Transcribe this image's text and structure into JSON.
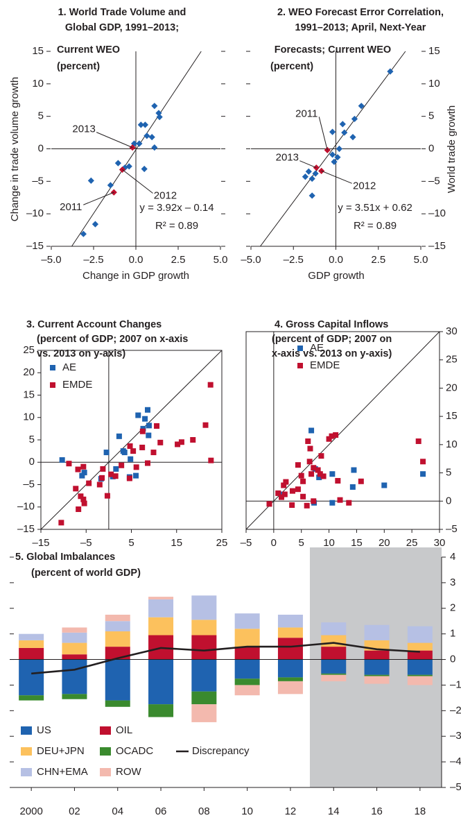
{
  "chart_data": [
    {
      "type": "scatter",
      "title": [
        "1. World Trade Volume and",
        "Global GDP, 1991–2013;",
        "Current WEO",
        "(percent)"
      ],
      "x_label": "Change in GDP growth",
      "y_label": "Change in trade volume growth",
      "xlim": [
        -5,
        5
      ],
      "xticks": [
        {
          "value": -5,
          "label": "–5.0"
        },
        {
          "value": -2.5,
          "label": "–2.5"
        },
        {
          "value": 0,
          "label": "0.0"
        },
        {
          "value": 2.5,
          "label": "2.5"
        },
        {
          "value": 5,
          "label": "5.0"
        }
      ],
      "ylim": [
        -15,
        15
      ],
      "yticks": [
        {
          "value": -15,
          "label": "–15"
        },
        {
          "value": -10,
          "label": "–10"
        },
        {
          "value": -5,
          "label": "–5"
        },
        0,
        5,
        10,
        15
      ],
      "marker": "diamond",
      "series": [
        {
          "color": "#1f63b0",
          "x": [
            1.1,
            1.35,
            1.4,
            0.55,
            0.3,
            0.65,
            0.95,
            1.1,
            0.2,
            -0.1,
            -0.4,
            -0.65,
            -1.05,
            0.5,
            -1.5,
            -2.65,
            -2.4,
            -3.1
          ],
          "values": [
            6.6,
            5.5,
            4.9,
            3.7,
            3.7,
            2.0,
            1.8,
            0.2,
            0.8,
            0.8,
            -2.7,
            -2.9,
            -2.2,
            -3.1,
            -5.6,
            -4.9,
            -11.6,
            -13.1
          ]
        },
        {
          "color": "#c0102f",
          "x": [
            -0.2,
            -0.8,
            -1.3
          ],
          "values": [
            0.2,
            -3.2,
            -6.7
          ],
          "labels": [
            "2013",
            "2012",
            "2011"
          ]
        }
      ],
      "trendline": {
        "slope": 3.92,
        "intercept": -0.14,
        "label": "y = 3.92x – 0.14"
      },
      "r2_label": "R² = 0.89"
    },
    {
      "type": "scatter",
      "title": [
        "2. WEO Forecast Error Correlation,",
        "1991–2013; April, Next-Year",
        "Forecasts; Current WEO",
        "(percent)"
      ],
      "x_label": "GDP growth",
      "y_label": "World trade growth",
      "xlim": [
        -5,
        5
      ],
      "xticks": [
        {
          "value": -5,
          "label": "–5.0"
        },
        {
          "value": -2.5,
          "label": "–2.5"
        },
        {
          "value": 0,
          "label": "0.0"
        },
        {
          "value": 2.5,
          "label": "2.5"
        },
        {
          "value": 5,
          "label": "5.0"
        }
      ],
      "ylim": [
        -15,
        15
      ],
      "yticks": [
        {
          "value": -15,
          "label": "–15"
        },
        {
          "value": -10,
          "label": "–10"
        },
        {
          "value": -5,
          "label": "–5"
        },
        0,
        5,
        10,
        15
      ],
      "marker": "diamond",
      "series": [
        {
          "color": "#1f63b0",
          "x": [
            3.2,
            1.5,
            1.1,
            0.4,
            -0.2,
            0.5,
            1.0,
            0.2,
            -0.2,
            -0.1,
            0.1,
            -1.6,
            -1.8,
            -1.4,
            -1.4,
            -1.2
          ],
          "values": [
            11.9,
            6.6,
            4.6,
            3.8,
            2.6,
            2.5,
            1.8,
            0.0,
            -0.9,
            -2.0,
            -1.3,
            -3.5,
            -4.3,
            -4.6,
            -7.2,
            -3.8
          ]
        },
        {
          "color": "#c0102f",
          "x": [
            -0.5,
            -1.15,
            -0.85
          ],
          "values": [
            -0.2,
            -2.9,
            -3.4
          ],
          "labels": [
            "2011",
            "2013",
            "2012"
          ]
        }
      ],
      "trendline": {
        "slope": 3.51,
        "intercept": 0.62,
        "label": "y = 3.51x + 0.62"
      },
      "r2_label": "R² = 0.89"
    },
    {
      "type": "scatter",
      "title": [
        "3. Current Account Changes",
        "(percent of GDP; 2007 on x-axis",
        "vs. 2013 on y-axis)"
      ],
      "xlim": [
        -15,
        25
      ],
      "xticks": [
        {
          "value": -15,
          "label": "–15"
        },
        {
          "value": -5,
          "label": "–5"
        },
        5,
        15,
        25
      ],
      "ylim": [
        -15,
        25
      ],
      "yticks": [
        {
          "value": -15,
          "label": "–15"
        },
        {
          "value": -10,
          "label": "–10"
        },
        {
          "value": -5,
          "label": "–5"
        },
        0,
        5,
        10,
        15,
        20,
        25
      ],
      "marker": "square",
      "series": [
        {
          "name": "AE",
          "color": "#1f63b0",
          "x": [
            -10.3,
            -5.4,
            -5.9,
            -1.7,
            -0.5,
            0.9,
            2.3,
            3.2,
            4.8,
            4.6,
            6.0,
            6.5,
            7.6,
            8.0,
            8.6,
            8.8,
            8.9,
            1.6,
            3.5
          ],
          "values": [
            0.5,
            -2.3,
            -3.0,
            -3.7,
            2.2,
            -3.2,
            5.8,
            2.5,
            0.7,
            -3.3,
            -3.0,
            10.5,
            7.5,
            9.7,
            11.7,
            6.0,
            8.2,
            -1.5,
            2.2
          ]
        },
        {
          "name": "EMDE",
          "color": "#c0102f",
          "x": [
            -8.8,
            -7.3,
            -6.8,
            -6.7,
            -6.2,
            -5.6,
            -5.6,
            -5.4,
            -4.4,
            -10.5,
            -1.5,
            -1.3,
            -0.3,
            0.5,
            1.5,
            2.8,
            4.6,
            4.7,
            5.4,
            6.1,
            7.4,
            8.6,
            9.9,
            10.6,
            11.4,
            15.2,
            16.1,
            18.6,
            21.4,
            22.5,
            22.6,
            7.5,
            -2.0
          ],
          "values": [
            -0.3,
            -5.9,
            -1.6,
            -10.5,
            -7.6,
            -1.0,
            -8.3,
            -9.2,
            -4.7,
            -13.5,
            -3.5,
            -1.5,
            -7.5,
            -2.7,
            -3.1,
            -0.7,
            -3.6,
            3.6,
            2.5,
            -1.1,
            3.3,
            -0.2,
            2.2,
            8.1,
            4.4,
            4.0,
            4.5,
            5.0,
            8.3,
            17.3,
            0.4,
            6.9,
            -5.0
          ]
        }
      ]
    },
    {
      "type": "scatter",
      "title": [
        "4. Gross Capital Inflows",
        "(percent of GDP; 2007 on",
        "x-axis vs. 2013 on y-axis)"
      ],
      "xlim": [
        -5,
        30
      ],
      "xticks": [
        {
          "value": -5,
          "label": "–5"
        },
        0,
        5,
        10,
        15,
        20,
        25,
        30
      ],
      "ylim": [
        -5,
        30
      ],
      "yticks": [
        {
          "value": -5,
          "label": "–5"
        },
        0,
        5,
        10,
        15,
        20,
        25,
        30
      ],
      "marker": "square",
      "series": [
        {
          "name": "AE",
          "color": "#1f63b0",
          "x": [
            6.8,
            7.5,
            8.2,
            10.6,
            14.5,
            14.3,
            20.0,
            27.0,
            10.6,
            7.3,
            1.7
          ],
          "values": [
            12.5,
            5.7,
            4.2,
            4.8,
            5.5,
            2.5,
            2.8,
            4.8,
            -0.3,
            -0.3,
            1.2
          ]
        },
        {
          "name": "EMDE",
          "color": "#c0102f",
          "x": [
            -0.8,
            0.8,
            1.4,
            2.0,
            1.8,
            2.2,
            3.4,
            4.4,
            4.4,
            5.3,
            5.0,
            5.3,
            6.5,
            6.6,
            6.2,
            7.2,
            8.0,
            8.4,
            8.6,
            9.0,
            10.0,
            10.5,
            11.2,
            11.6,
            13.6,
            12.0,
            15.8,
            7.2,
            6.0,
            3.3,
            26.2,
            27.0,
            6.8
          ],
          "values": [
            -0.5,
            1.4,
            0.7,
            1.2,
            2.8,
            3.4,
            1.8,
            6.4,
            2.1,
            0.8,
            4.5,
            3.5,
            7.0,
            9.3,
            10.6,
            5.9,
            5.5,
            4.8,
            8.0,
            4.4,
            11.0,
            11.5,
            11.7,
            3.6,
            -0.3,
            0.2,
            3.5,
            0.0,
            -0.8,
            -0.7,
            10.6,
            7.0,
            4.8
          ]
        }
      ]
    },
    {
      "type": "bar",
      "stacked": true,
      "title": [
        "5. Global Imbalances",
        "(percent of world GDP)"
      ],
      "categories": [
        "2000",
        "02",
        "04",
        "06",
        "08",
        "10",
        "12",
        "14",
        "16",
        "18"
      ],
      "ylim": [
        -5,
        4
      ],
      "yticks": [
        {
          "value": -5,
          "label": "–5"
        },
        {
          "value": -4,
          "label": "–4"
        },
        {
          "value": -3,
          "label": "–3"
        },
        {
          "value": -2,
          "label": "–2"
        },
        {
          "value": -1,
          "label": "–1"
        },
        0,
        1,
        2,
        3,
        4
      ],
      "series": [
        {
          "name": "US",
          "color": "#1f63b0",
          "values": [
            -1.4,
            -1.35,
            -1.6,
            -1.75,
            -1.25,
            -0.75,
            -0.7,
            -0.55,
            -0.6,
            -0.6
          ]
        },
        {
          "name": "OIL",
          "color": "#c0102f",
          "values": [
            0.45,
            0.2,
            0.5,
            0.95,
            0.95,
            0.5,
            0.85,
            0.5,
            0.35,
            0.35
          ]
        },
        {
          "name": "DEU+JPN",
          "color": "#fcc15d",
          "values": [
            0.3,
            0.45,
            0.6,
            0.7,
            0.6,
            0.7,
            0.4,
            0.45,
            0.4,
            0.3
          ]
        },
        {
          "name": "OCADC",
          "color": "#3a8a2e",
          "values": [
            -0.2,
            -0.2,
            -0.25,
            -0.5,
            -0.5,
            -0.25,
            -0.15,
            -0.05,
            -0.05,
            -0.05
          ]
        },
        {
          "name": "CHN+EMA",
          "color": "#b6c0e4",
          "values": [
            0.25,
            0.4,
            0.4,
            0.7,
            0.95,
            0.6,
            0.5,
            0.5,
            0.6,
            0.65
          ]
        },
        {
          "name": "ROW",
          "color": "#f3b9ae",
          "values": [
            0,
            0.2,
            0.25,
            0.1,
            -0.7,
            -0.4,
            -0.5,
            -0.25,
            -0.3,
            -0.35
          ]
        },
        {
          "name": "Discrepancy",
          "color": "#231f20",
          "type": "line",
          "values": [
            -0.55,
            -0.4,
            0.05,
            0.45,
            0.35,
            0.5,
            0.5,
            0.65,
            0.4,
            0.3
          ]
        }
      ]
    }
  ]
}
